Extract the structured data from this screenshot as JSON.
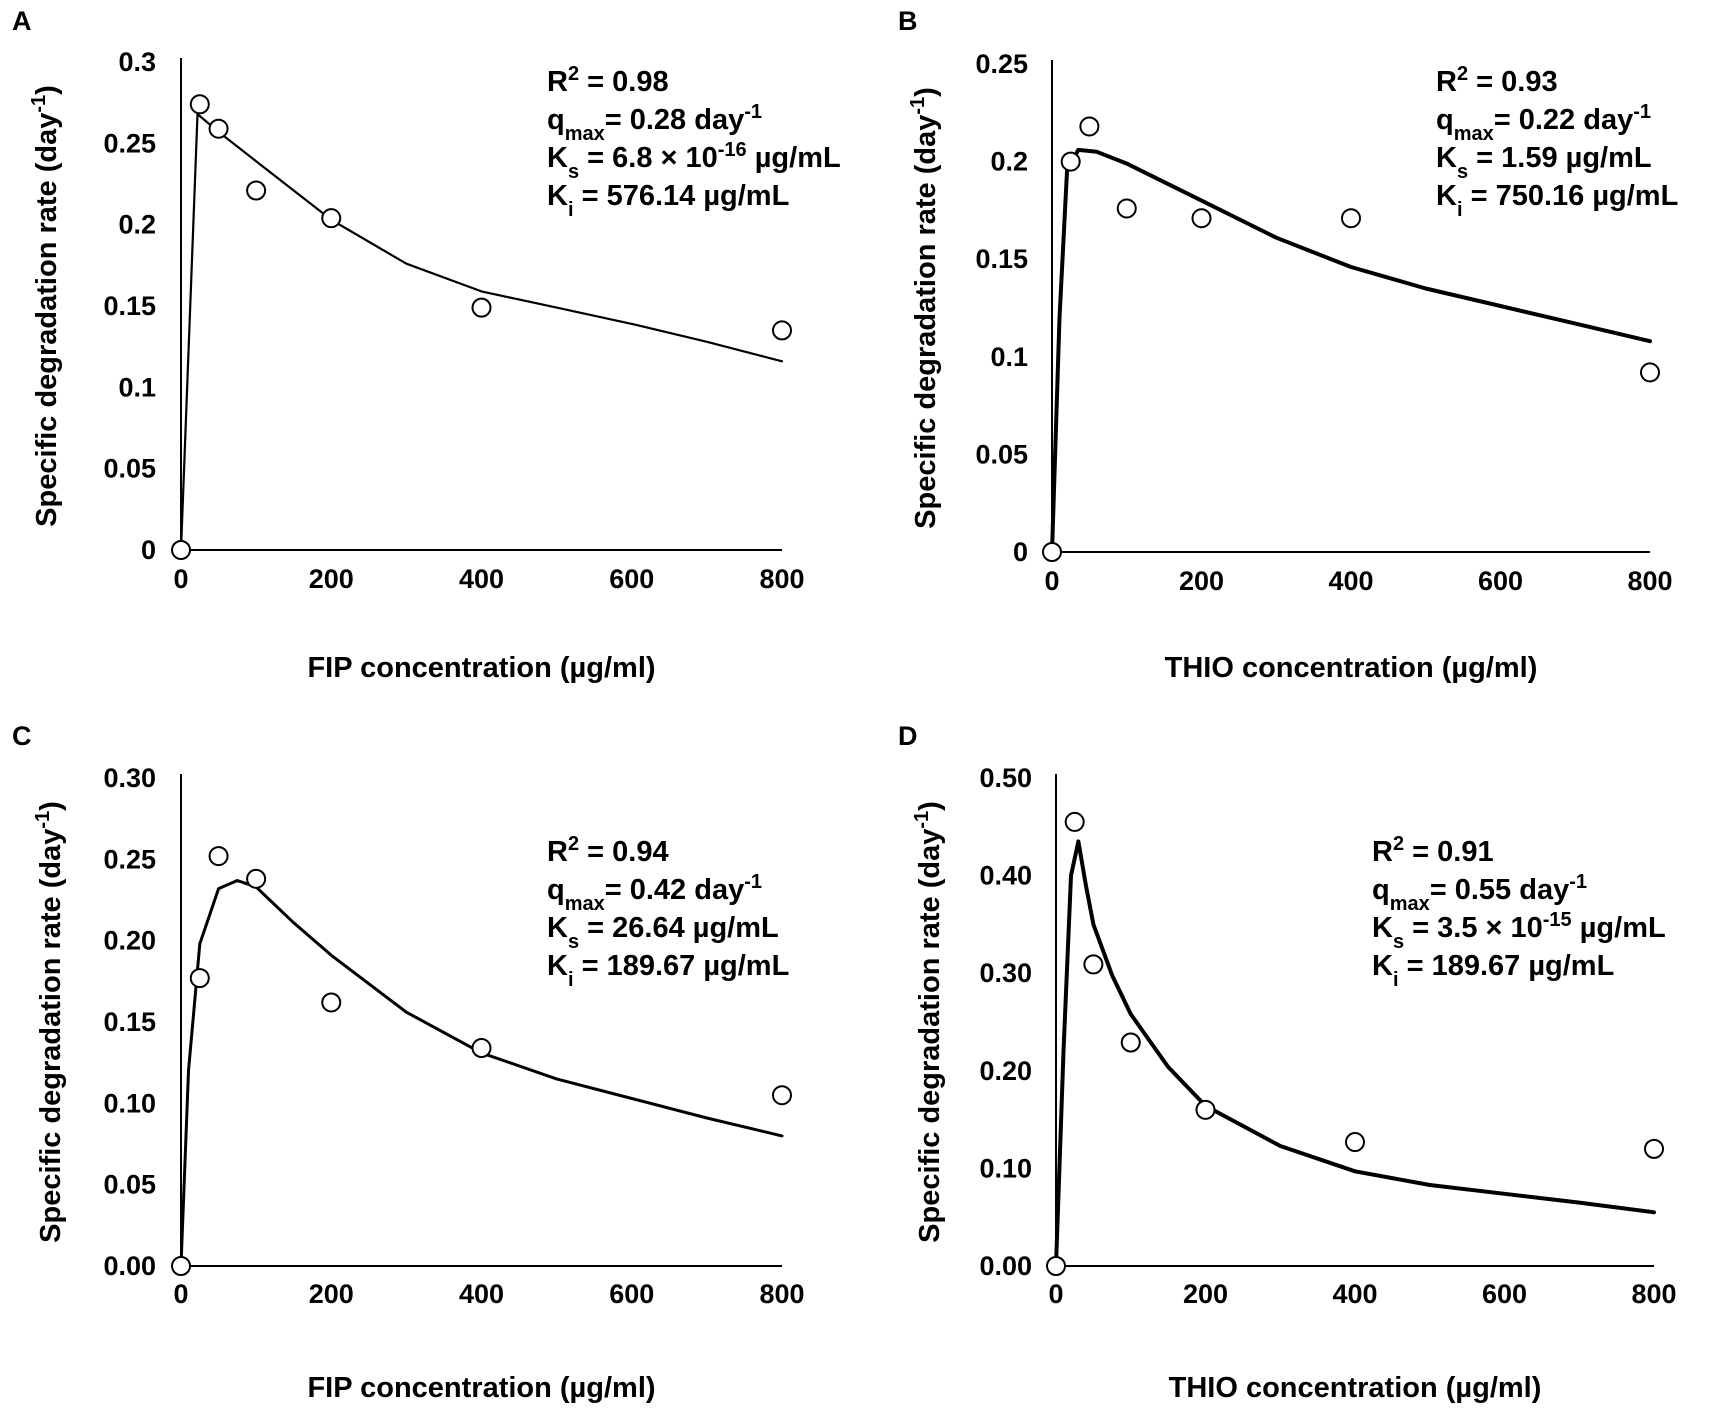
{
  "chart_data": [
    {
      "panel": "A",
      "type": "scatter",
      "title": "",
      "xlabel": "FIP concentration (µg/ml)",
      "ylabel_main": "Specific degradation rate (day",
      "ylabel_sup": "-1",
      "ylabel_tail": ")",
      "xlim": [
        0,
        800
      ],
      "ylim": [
        0,
        0.3
      ],
      "x_ticks": [
        "0",
        "200",
        "400",
        "600",
        "800"
      ],
      "y_ticks": [
        "0",
        "0.05",
        "0.1",
        "0.15",
        "0.2",
        "0.25",
        "0.3"
      ],
      "observed": {
        "x": [
          0,
          25,
          50,
          100,
          200,
          400,
          800
        ],
        "y": [
          0,
          0.274,
          0.259,
          0.221,
          0.204,
          0.149,
          0.135
        ]
      },
      "fit": {
        "x": [
          0,
          22,
          50,
          100,
          200,
          300,
          400,
          500,
          600,
          700,
          800
        ],
        "y": [
          0,
          0.268,
          0.257,
          0.239,
          0.203,
          0.176,
          0.159,
          0.149,
          0.139,
          0.128,
          0.116
        ]
      },
      "annotation": {
        "r2": {
          "a": "R",
          "b": "2",
          "c": " = 0.98"
        },
        "qmax": {
          "a": "q",
          "b": "max",
          "c": "= 0.28 day",
          "d": "-1"
        },
        "ks": {
          "a": "K",
          "b": "s",
          "c": " = 6.8 × 10",
          "d": "-16",
          "e": " µg/mL"
        },
        "ki": {
          "a": "K",
          "b": "i",
          "c": " = 576.14 µg/mL"
        }
      }
    },
    {
      "panel": "B",
      "type": "scatter",
      "title": "",
      "xlabel": "THIO concentration (µg/ml)",
      "ylabel_main": "Specific degradation rate (day",
      "ylabel_sup": "-1",
      "ylabel_tail": ")",
      "xlim": [
        0,
        800
      ],
      "ylim": [
        0,
        0.25
      ],
      "x_ticks": [
        "0",
        "200",
        "400",
        "600",
        "800"
      ],
      "y_ticks": [
        "0",
        "0.05",
        "0.1",
        "0.15",
        "0.2",
        "0.25"
      ],
      "observed": {
        "x": [
          0,
          25,
          50,
          100,
          200,
          400,
          800
        ],
        "y": [
          0,
          0.2,
          0.218,
          0.176,
          0.171,
          0.171,
          0.092
        ]
      },
      "fit": {
        "x": [
          0,
          10,
          20,
          35,
          60,
          100,
          200,
          300,
          400,
          500,
          600,
          700,
          800
        ],
        "y": [
          0,
          0.12,
          0.195,
          0.206,
          0.205,
          0.199,
          0.18,
          0.161,
          0.146,
          0.135,
          0.126,
          0.117,
          0.108
        ]
      },
      "annotation": {
        "r2": {
          "a": "R",
          "b": "2",
          "c": " = 0.93"
        },
        "qmax": {
          "a": "q",
          "b": "max",
          "c": "= 0.22 day",
          "d": "-1"
        },
        "ks": {
          "a": "K",
          "b": "s",
          "c": " = 1.59 µg/mL"
        },
        "ki": {
          "a": "K",
          "b": "i",
          "c": " = 750.16 µg/mL"
        }
      }
    },
    {
      "panel": "C",
      "type": "scatter",
      "title": "",
      "xlabel": "FIP concentration (µg/ml)",
      "ylabel_main": "Specific degradation rate (day",
      "ylabel_sup": "-1",
      "ylabel_tail": ")",
      "xlim": [
        0,
        800
      ],
      "ylim": [
        0,
        0.3
      ],
      "x_ticks": [
        "0",
        "200",
        "400",
        "600",
        "800"
      ],
      "y_ticks": [
        "0.00",
        "0.05",
        "0.10",
        "0.15",
        "0.20",
        "0.25",
        "0.30"
      ],
      "observed": {
        "x": [
          0,
          25,
          50,
          100,
          200,
          400,
          800
        ],
        "y": [
          0,
          0.177,
          0.252,
          0.238,
          0.162,
          0.134,
          0.105
        ]
      },
      "fit": {
        "x": [
          0,
          10,
          25,
          50,
          75,
          100,
          150,
          200,
          300,
          400,
          500,
          600,
          700,
          800
        ],
        "y": [
          0,
          0.12,
          0.198,
          0.232,
          0.237,
          0.233,
          0.211,
          0.191,
          0.156,
          0.131,
          0.115,
          0.103,
          0.091,
          0.08
        ]
      },
      "annotation": {
        "r2": {
          "a": "R",
          "b": "2",
          "c": " = 0.94"
        },
        "qmax": {
          "a": "q",
          "b": "max",
          "c": "= 0.42 day",
          "d": "-1"
        },
        "ks": {
          "a": "K",
          "b": "s",
          "c": " = 26.64 µg/mL"
        },
        "ki": {
          "a": "K",
          "b": "i",
          "c": " = 189.67 µg/mL"
        }
      }
    },
    {
      "panel": "D",
      "type": "scatter",
      "title": "",
      "xlabel": "THIO concentration (µg/ml)",
      "ylabel_main": "Specific degradation rate (day",
      "ylabel_sup": "-1",
      "ylabel_tail": ")",
      "xlim": [
        0,
        800
      ],
      "ylim": [
        0,
        0.5
      ],
      "x_ticks": [
        "0",
        "200",
        "400",
        "600",
        "800"
      ],
      "y_ticks": [
        "0.00",
        "0.10",
        "0.20",
        "0.30",
        "0.40",
        "0.50"
      ],
      "observed": {
        "x": [
          0,
          25,
          50,
          100,
          200,
          400,
          800
        ],
        "y": [
          0,
          0.455,
          0.309,
          0.229,
          0.16,
          0.127,
          0.12
        ]
      },
      "fit": {
        "x": [
          0,
          10,
          20,
          30,
          40,
          50,
          75,
          100,
          150,
          200,
          300,
          400,
          500,
          600,
          700,
          800
        ],
        "y": [
          0,
          0.22,
          0.4,
          0.435,
          0.39,
          0.35,
          0.298,
          0.258,
          0.204,
          0.164,
          0.123,
          0.097,
          0.083,
          0.074,
          0.065,
          0.055
        ]
      },
      "annotation": {
        "r2": {
          "a": "R",
          "b": "2",
          "c": " = 0.91"
        },
        "qmax": {
          "a": "q",
          "b": "max",
          "c": "= 0.55 day",
          "d": "-1"
        },
        "ks": {
          "a": "K",
          "b": "s",
          "c": " = 3.5 × 10",
          "d": "-15",
          "e": " µg/mL"
        },
        "ki": {
          "a": "K",
          "b": "i",
          "c": " = 189.67 µg/mL"
        }
      }
    }
  ]
}
